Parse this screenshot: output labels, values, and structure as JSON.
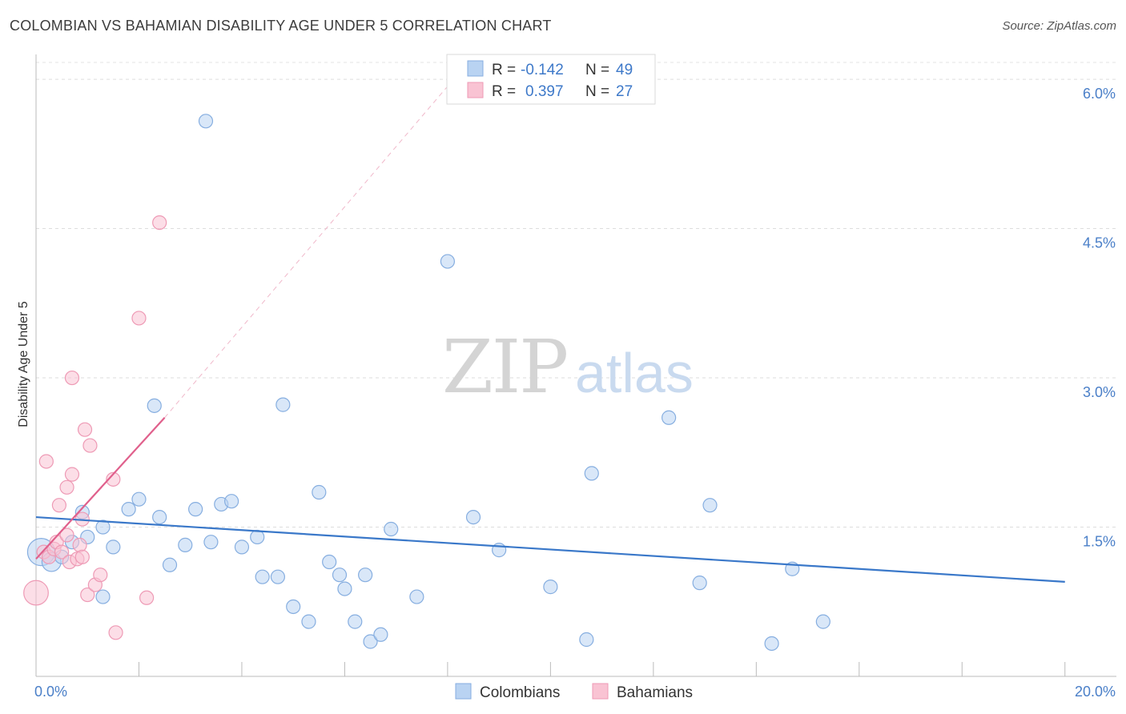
{
  "header": {
    "title": "COLOMBIAN VS BAHAMIAN DISABILITY AGE UNDER 5 CORRELATION CHART",
    "source": "Source: ZipAtlas.com"
  },
  "watermark": {
    "zip": "ZIP",
    "atlas": "atlas"
  },
  "stats": [
    {
      "r_label": "R =",
      "r_value": "-0.142",
      "n_label": "N =",
      "n_value": "49",
      "color": "#b9d3f2",
      "stroke": "#86aee0"
    },
    {
      "r_label": "R =",
      "r_value": "0.397",
      "n_label": "N =",
      "n_value": "27",
      "color": "#f9c3d3",
      "stroke": "#ee9ab5"
    }
  ],
  "chart_data": {
    "type": "scatter",
    "title": "COLOMBIAN VS BAHAMIAN DISABILITY AGE UNDER 5 CORRELATION CHART",
    "xlabel": "",
    "ylabel": "Disability Age Under 5",
    "xlim": [
      0,
      21
    ],
    "ylim": [
      0,
      6.25
    ],
    "x_tick_labels": [
      {
        "value": 0,
        "label": "0.0%"
      },
      {
        "value": 20,
        "label": "20.0%"
      }
    ],
    "y_tick_labels": [
      {
        "value": 1.5,
        "label": "1.5%"
      },
      {
        "value": 3.0,
        "label": "3.0%"
      },
      {
        "value": 4.5,
        "label": "4.5%"
      },
      {
        "value": 6.0,
        "label": "6.0%"
      }
    ],
    "x_minor_ticks": [
      0,
      2,
      4,
      6,
      8,
      10,
      12,
      14,
      16,
      18,
      20
    ],
    "grid": true,
    "legend": {
      "position": "bottom-center",
      "entries": [
        "Colombians",
        "Bahamians"
      ]
    },
    "series": [
      {
        "name": "Colombians",
        "color": "#b9d3f2",
        "stroke": "#86aee0",
        "trend_color": "#3a78c9",
        "points": [
          {
            "x": 0.1,
            "y": 1.25,
            "s": 2.0
          },
          {
            "x": 0.3,
            "y": 1.15,
            "s": 1.4
          },
          {
            "x": 0.7,
            "y": 1.35,
            "s": 1
          },
          {
            "x": 1.0,
            "y": 1.4,
            "s": 1
          },
          {
            "x": 0.9,
            "y": 1.65,
            "s": 1
          },
          {
            "x": 1.3,
            "y": 1.5,
            "s": 1
          },
          {
            "x": 1.5,
            "y": 1.3,
            "s": 1
          },
          {
            "x": 1.3,
            "y": 0.8,
            "s": 1
          },
          {
            "x": 1.8,
            "y": 1.68,
            "s": 1
          },
          {
            "x": 2.0,
            "y": 1.78,
            "s": 1
          },
          {
            "x": 2.3,
            "y": 2.72,
            "s": 1
          },
          {
            "x": 2.4,
            "y": 1.6,
            "s": 1
          },
          {
            "x": 2.6,
            "y": 1.12,
            "s": 1
          },
          {
            "x": 2.9,
            "y": 1.32,
            "s": 1
          },
          {
            "x": 3.1,
            "y": 1.68,
            "s": 1
          },
          {
            "x": 3.3,
            "y": 5.58,
            "s": 1
          },
          {
            "x": 3.4,
            "y": 1.35,
            "s": 1
          },
          {
            "x": 3.6,
            "y": 1.73,
            "s": 1
          },
          {
            "x": 3.8,
            "y": 1.76,
            "s": 1
          },
          {
            "x": 4.0,
            "y": 1.3,
            "s": 1
          },
          {
            "x": 4.3,
            "y": 1.4,
            "s": 1
          },
          {
            "x": 4.4,
            "y": 1.0,
            "s": 1
          },
          {
            "x": 4.7,
            "y": 1.0,
            "s": 1
          },
          {
            "x": 4.8,
            "y": 2.73,
            "s": 1
          },
          {
            "x": 5.0,
            "y": 0.7,
            "s": 1
          },
          {
            "x": 5.3,
            "y": 0.55,
            "s": 1
          },
          {
            "x": 5.5,
            "y": 1.85,
            "s": 1
          },
          {
            "x": 5.7,
            "y": 1.15,
            "s": 1
          },
          {
            "x": 5.9,
            "y": 1.02,
            "s": 1
          },
          {
            "x": 6.0,
            "y": 0.88,
            "s": 1
          },
          {
            "x": 6.2,
            "y": 0.55,
            "s": 1
          },
          {
            "x": 6.4,
            "y": 1.02,
            "s": 1
          },
          {
            "x": 6.5,
            "y": 0.35,
            "s": 1
          },
          {
            "x": 6.7,
            "y": 0.42,
            "s": 1
          },
          {
            "x": 6.9,
            "y": 1.48,
            "s": 1
          },
          {
            "x": 7.4,
            "y": 0.8,
            "s": 1
          },
          {
            "x": 8.0,
            "y": 4.17,
            "s": 1
          },
          {
            "x": 8.5,
            "y": 1.6,
            "s": 1
          },
          {
            "x": 9.0,
            "y": 1.27,
            "s": 1
          },
          {
            "x": 10.0,
            "y": 0.9,
            "s": 1
          },
          {
            "x": 10.7,
            "y": 0.37,
            "s": 1
          },
          {
            "x": 10.8,
            "y": 2.04,
            "s": 1
          },
          {
            "x": 12.3,
            "y": 2.6,
            "s": 1
          },
          {
            "x": 12.9,
            "y": 0.94,
            "s": 1
          },
          {
            "x": 13.1,
            "y": 1.72,
            "s": 1
          },
          {
            "x": 14.3,
            "y": 0.33,
            "s": 1
          },
          {
            "x": 14.7,
            "y": 1.08,
            "s": 1
          },
          {
            "x": 15.3,
            "y": 0.55,
            "s": 1
          },
          {
            "x": 0.5,
            "y": 1.2,
            "s": 1
          }
        ],
        "trend": {
          "x": [
            0,
            20
          ],
          "y": [
            1.6,
            0.95
          ]
        }
      },
      {
        "name": "Bahamians",
        "color": "#f9c3d3",
        "stroke": "#ee9ab5",
        "trend_color": "#e0608c",
        "points": [
          {
            "x": 0.0,
            "y": 0.84,
            "s": 1.8
          },
          {
            "x": 0.15,
            "y": 1.25,
            "s": 1
          },
          {
            "x": 0.2,
            "y": 2.16,
            "s": 1
          },
          {
            "x": 0.25,
            "y": 1.2,
            "s": 1
          },
          {
            "x": 0.35,
            "y": 1.28,
            "s": 1
          },
          {
            "x": 0.4,
            "y": 1.35,
            "s": 1
          },
          {
            "x": 0.45,
            "y": 1.72,
            "s": 1
          },
          {
            "x": 0.5,
            "y": 1.25,
            "s": 1
          },
          {
            "x": 0.6,
            "y": 1.42,
            "s": 1
          },
          {
            "x": 0.65,
            "y": 1.15,
            "s": 1
          },
          {
            "x": 0.6,
            "y": 1.9,
            "s": 1
          },
          {
            "x": 0.7,
            "y": 2.03,
            "s": 1
          },
          {
            "x": 0.7,
            "y": 3.0,
            "s": 1
          },
          {
            "x": 0.8,
            "y": 1.18,
            "s": 1
          },
          {
            "x": 0.85,
            "y": 1.32,
            "s": 1
          },
          {
            "x": 0.9,
            "y": 1.58,
            "s": 1
          },
          {
            "x": 0.95,
            "y": 2.48,
            "s": 1
          },
          {
            "x": 1.0,
            "y": 0.82,
            "s": 1
          },
          {
            "x": 1.05,
            "y": 2.32,
            "s": 1
          },
          {
            "x": 1.15,
            "y": 0.92,
            "s": 1
          },
          {
            "x": 1.25,
            "y": 1.02,
            "s": 1
          },
          {
            "x": 1.5,
            "y": 1.98,
            "s": 1
          },
          {
            "x": 1.55,
            "y": 0.44,
            "s": 1
          },
          {
            "x": 2.0,
            "y": 3.6,
            "s": 1
          },
          {
            "x": 2.15,
            "y": 0.79,
            "s": 1
          },
          {
            "x": 2.4,
            "y": 4.56,
            "s": 1
          },
          {
            "x": 0.9,
            "y": 1.2,
            "s": 1
          }
        ],
        "trend": {
          "x": [
            0,
            2.5
          ],
          "y": [
            1.18,
            2.6
          ]
        },
        "trend_extension": {
          "x": [
            2.5,
            8.0
          ],
          "y": [
            2.6,
            5.93
          ]
        }
      }
    ]
  }
}
